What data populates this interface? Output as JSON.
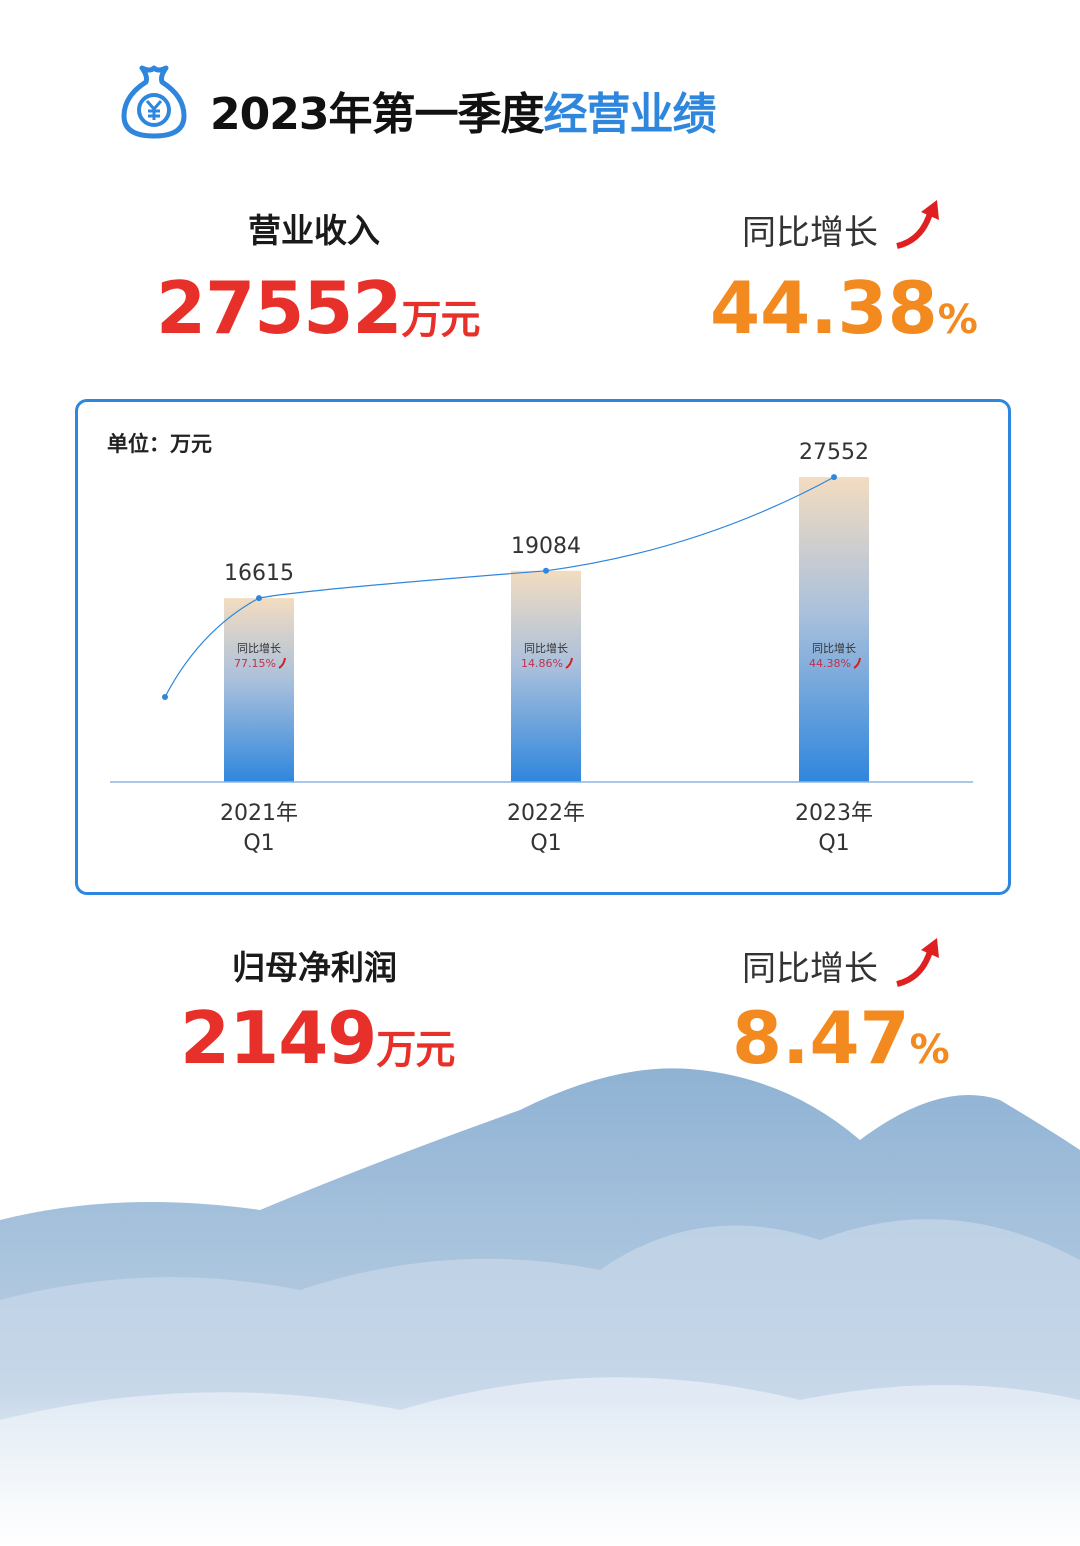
{
  "header": {
    "title_black": "2023年第一季度",
    "title_blue": "经营业绩",
    "icon": "money-bag-yen-icon"
  },
  "revenue": {
    "label": "营业收入",
    "value": "27552",
    "unit": "万元",
    "growth_label": "同比增长",
    "growth": "44.38",
    "growth_unit": "%"
  },
  "profit": {
    "label": "归母净利润",
    "value": "2149",
    "unit": "万元",
    "growth_label": "同比增长",
    "growth": "8.47",
    "growth_unit": "%"
  },
  "colors": {
    "accent": "#2f86dd",
    "value": "#e8302a",
    "growth": "#f28a1f"
  },
  "chart_data": {
    "type": "bar",
    "unit_label": "单位：万元",
    "categories": [
      [
        "2021年",
        "Q1"
      ],
      [
        "2022年",
        "Q1"
      ],
      [
        "2023年",
        "Q1"
      ]
    ],
    "values": [
      16615,
      19084,
      27552
    ],
    "data_labels": [
      "16615",
      "19084",
      "27552"
    ],
    "bar_annotations": [
      {
        "label": "同比增长",
        "value": "77.15%"
      },
      {
        "label": "同比增长",
        "value": "14.86%"
      },
      {
        "label": "同比增长",
        "value": "44.38%"
      }
    ],
    "trend_line": true,
    "ylim": [
      0,
      30000
    ],
    "grid": false
  }
}
